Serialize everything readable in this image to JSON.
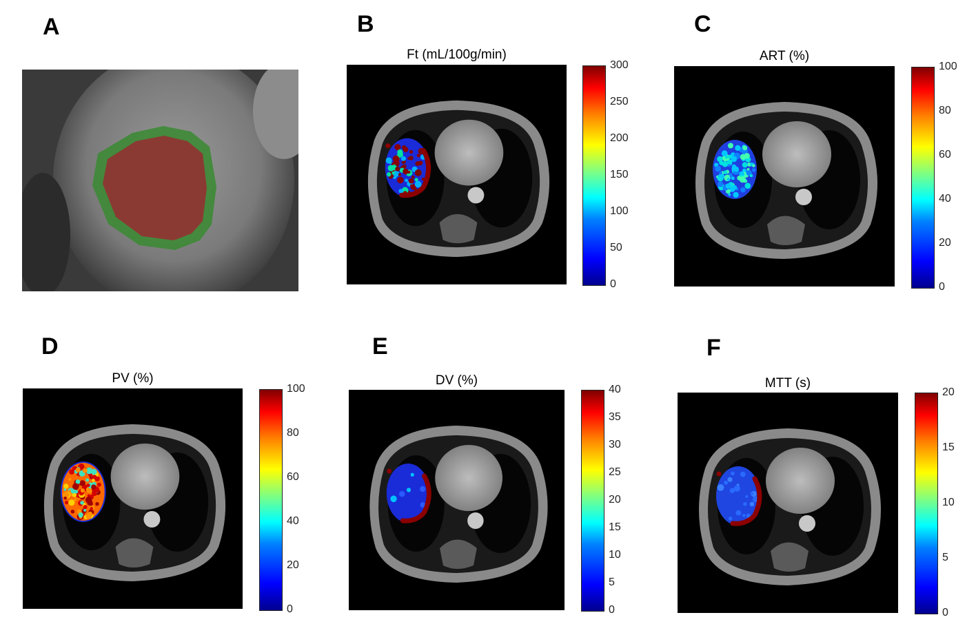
{
  "panels": [
    {
      "letter": "A"
    },
    {
      "letter": "B",
      "title": "Ft (mL/100g/min)",
      "ticks": [
        "300",
        "250",
        "200",
        "150",
        "100",
        "50",
        "0"
      ]
    },
    {
      "letter": "C",
      "title": "ART (%)",
      "ticks": [
        "100",
        "80",
        "60",
        "40",
        "20",
        "0"
      ]
    },
    {
      "letter": "D",
      "title": "PV (%)",
      "ticks": [
        "100",
        "80",
        "60",
        "40",
        "20",
        "0"
      ]
    },
    {
      "letter": "E",
      "title": "DV (%)",
      "ticks": [
        "40",
        "35",
        "30",
        "25",
        "20",
        "15",
        "10",
        "5",
        "0"
      ]
    },
    {
      "letter": "F",
      "title": "MTT (s)",
      "ticks": [
        "20",
        "15",
        "10",
        "5",
        "0"
      ]
    }
  ],
  "colors": {
    "roi_fill": "#8b3a33",
    "roi_border": "#3d8a35",
    "colormap": "jet"
  }
}
